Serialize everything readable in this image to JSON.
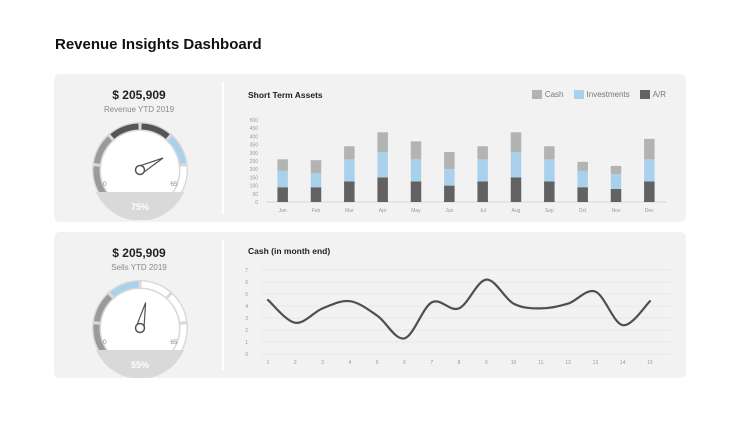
{
  "page": {
    "title": "Revenue Insights Dashboard"
  },
  "colors": {
    "cash": "#b3b3b3",
    "investments": "#a9d1ec",
    "ar": "#626262",
    "gauge_dark": "#555555",
    "gauge_light": "#9a9a9a",
    "gauge_accent": "#a9d1ec",
    "gauge_base": "#d9d9d9",
    "line": "#4f4f4f"
  },
  "kpis": [
    {
      "value": "$ 205,909",
      "label": "Revenue YTD 2019",
      "gauge": {
        "min_label": "0",
        "max_label": "65",
        "percent_label": "75%",
        "fraction": 0.75
      }
    },
    {
      "value": "$ 205,909",
      "label": "Sells YTD 2019",
      "gauge": {
        "min_label": "0",
        "max_label": "65",
        "percent_label": "55%",
        "fraction": 0.55
      }
    }
  ],
  "chart_data": [
    {
      "type": "bar",
      "stacked": true,
      "title": "Short Term Assets",
      "categories": [
        "Jan",
        "Feb",
        "Mar",
        "Apr",
        "May",
        "Jun",
        "Jul",
        "Aug",
        "Sep",
        "Oct",
        "Nov",
        "Dec"
      ],
      "series": [
        {
          "name": "A/R",
          "color_key": "ar",
          "values": [
            90,
            90,
            125,
            150,
            125,
            100,
            125,
            150,
            125,
            90,
            80,
            125
          ]
        },
        {
          "name": "Investments",
          "color_key": "investments",
          "values": [
            100,
            85,
            135,
            155,
            135,
            100,
            135,
            155,
            135,
            100,
            90,
            135
          ]
        },
        {
          "name": "Cash",
          "color_key": "cash",
          "values": [
            70,
            80,
            80,
            120,
            110,
            105,
            80,
            120,
            80,
            55,
            50,
            125
          ]
        }
      ],
      "legend": [
        "Cash",
        "Investments",
        "A/R"
      ],
      "legend_position": "top-right",
      "yticks": [
        "0",
        "50",
        "100",
        "150",
        "200",
        "250",
        "300",
        "350",
        "400",
        "450",
        "500"
      ],
      "ylim": [
        0,
        500
      ],
      "grid": false
    },
    {
      "type": "line",
      "title": "Cash (in month end)",
      "x": [
        1,
        2,
        3,
        4,
        5,
        6,
        7,
        8,
        9,
        10,
        11,
        12,
        13,
        14,
        15
      ],
      "xticks": [
        "1",
        "2",
        "3",
        "4",
        "5",
        "6",
        "7",
        "8",
        "9",
        "10",
        "11",
        "12",
        "13",
        "14",
        "15"
      ],
      "values": [
        4.5,
        2.6,
        3.8,
        4.4,
        3.2,
        1.3,
        4.3,
        3.8,
        6.2,
        4.2,
        3.8,
        4.2,
        5.2,
        2.4,
        4.4
      ],
      "yticks": [
        "0",
        "1",
        "2",
        "3",
        "4",
        "5",
        "6",
        "7"
      ],
      "ylim": [
        0,
        7
      ],
      "grid": true
    }
  ]
}
